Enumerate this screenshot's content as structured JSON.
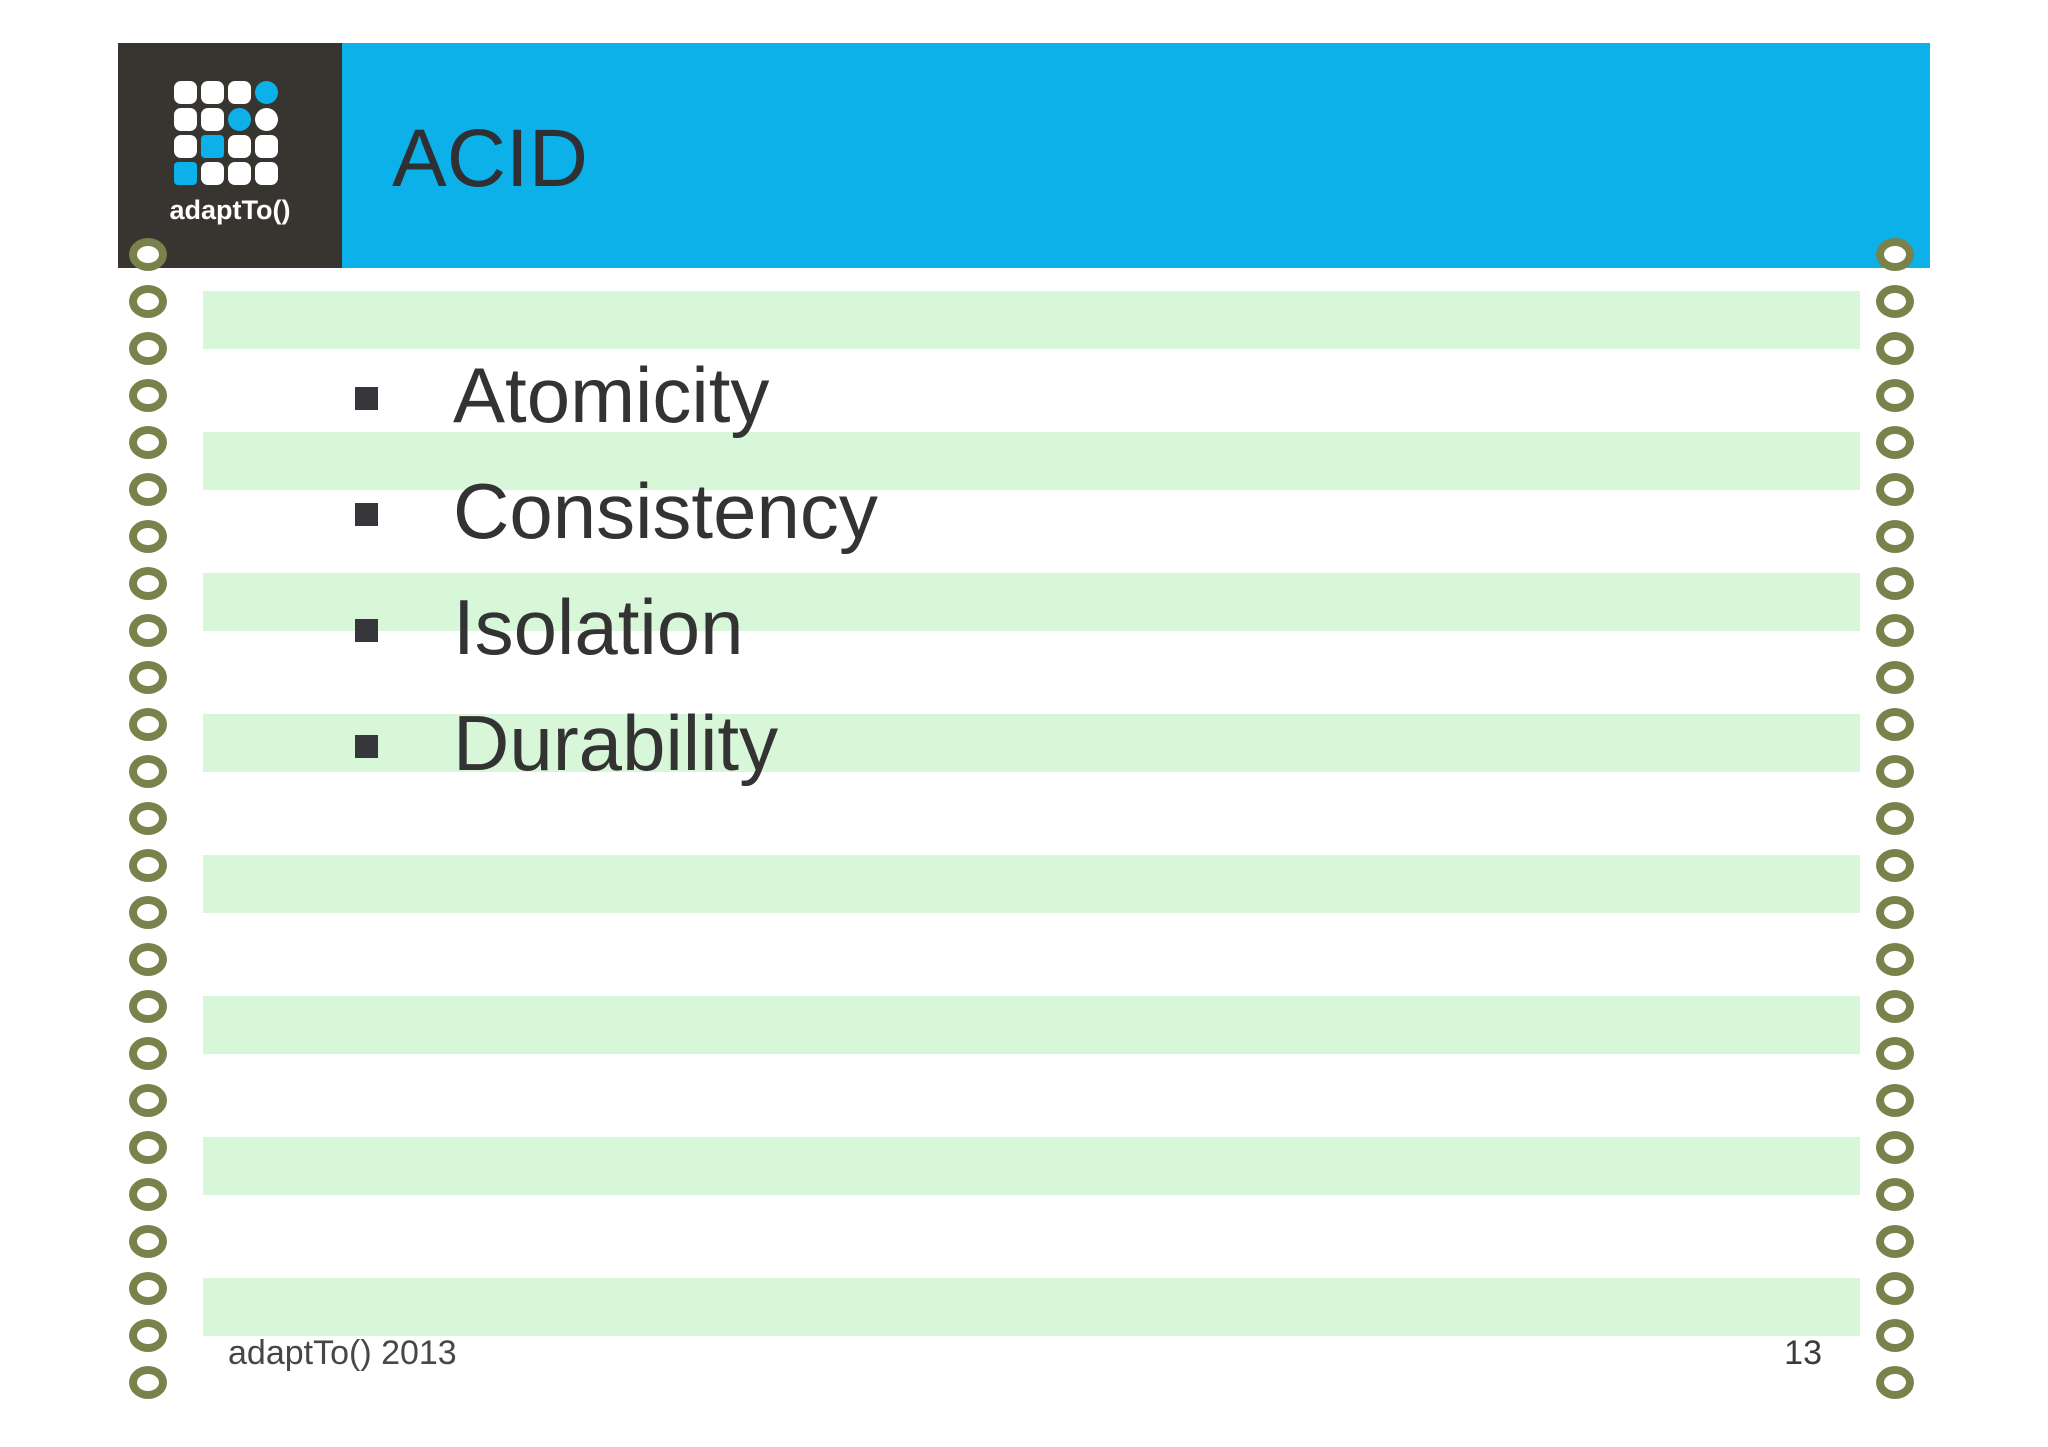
{
  "slide": {
    "title": "ACID",
    "bullets": [
      "Atomicity",
      "Consistency",
      "Isolation",
      "Durability"
    ],
    "footer": {
      "left": "adaptTo() 2013",
      "page_number": "13"
    }
  },
  "logo": {
    "text": "adaptTo()",
    "grid": [
      "sq-w",
      "sq-w",
      "sq-w",
      "ci-b",
      "sq-w",
      "sq-w",
      "ci-b",
      "ci-w",
      "sq-w",
      "sq-b",
      "sq-w",
      "sq-w",
      "sq-b",
      "sq-w",
      "sq-w",
      "sq-w"
    ]
  },
  "paper": {
    "holes_per_side": 25
  },
  "colors": {
    "accent": "#0cb1e9",
    "dark": "#383531",
    "stripe": "#d8f7d8",
    "olive": "#7a814b",
    "text": "#333333"
  }
}
